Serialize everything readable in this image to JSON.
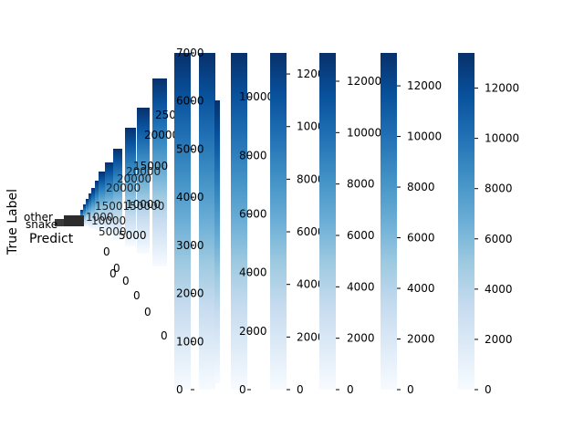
{
  "figure": {
    "ylabel": "True Label",
    "xlabel": "Predict"
  },
  "colormap": {
    "name": "Blues",
    "stops": [
      "#f7fbff",
      "#deebf7",
      "#c6dbef",
      "#9ecae1",
      "#6baed6",
      "#4292c6",
      "#2171b5",
      "#08519c",
      "#08306b"
    ]
  },
  "chart_data": {
    "type": "heatmap",
    "description_of_layout": "overlapping sequence of colorbars from repeated confusion-matrix plots",
    "row_labels_visible": [
      "other",
      "snake"
    ],
    "colorbars": [
      {
        "min": 0,
        "max": 7000,
        "ticks": [
          0,
          1000,
          2000,
          3000,
          4000,
          5000,
          6000,
          7000
        ]
      },
      {
        "min": 0,
        "max": 11500,
        "ticks": [
          0,
          2000,
          4000,
          6000,
          8000,
          10000
        ]
      },
      {
        "min": 0,
        "max": 12800,
        "ticks": [
          0,
          2000,
          4000,
          6000,
          8000,
          10000,
          12000
        ]
      },
      {
        "min": 0,
        "max": 13100,
        "ticks": [
          0,
          2000,
          4000,
          6000,
          8000,
          10000,
          12000
        ]
      },
      {
        "min": 0,
        "max": 13400,
        "ticks": [
          0,
          2000,
          4000,
          6000,
          8000,
          10000,
          12000
        ]
      }
    ],
    "small_colorbar_ticks": [
      "25000",
      "20000",
      "15000",
      "10000",
      "5000",
      "0"
    ],
    "large_colorbar_1_ticks": [
      "0",
      "1000",
      "2000",
      "3000",
      "4000",
      "5000",
      "6000",
      "7000"
    ],
    "large_colorbar_2_ticks": [
      "0",
      "2000",
      "4000",
      "6000",
      "8000",
      "10000"
    ],
    "large_colorbar_3_ticks": [
      "0",
      "2000",
      "4000",
      "6000",
      "8000",
      "10000",
      "12000"
    ],
    "large_colorbar_4_ticks": [
      "0",
      "2000",
      "4000",
      "6000",
      "8000",
      "10000",
      "12000"
    ],
    "large_colorbar_5_ticks": [
      "0",
      "2000",
      "4000",
      "6000",
      "8000",
      "10000",
      "12000"
    ]
  }
}
